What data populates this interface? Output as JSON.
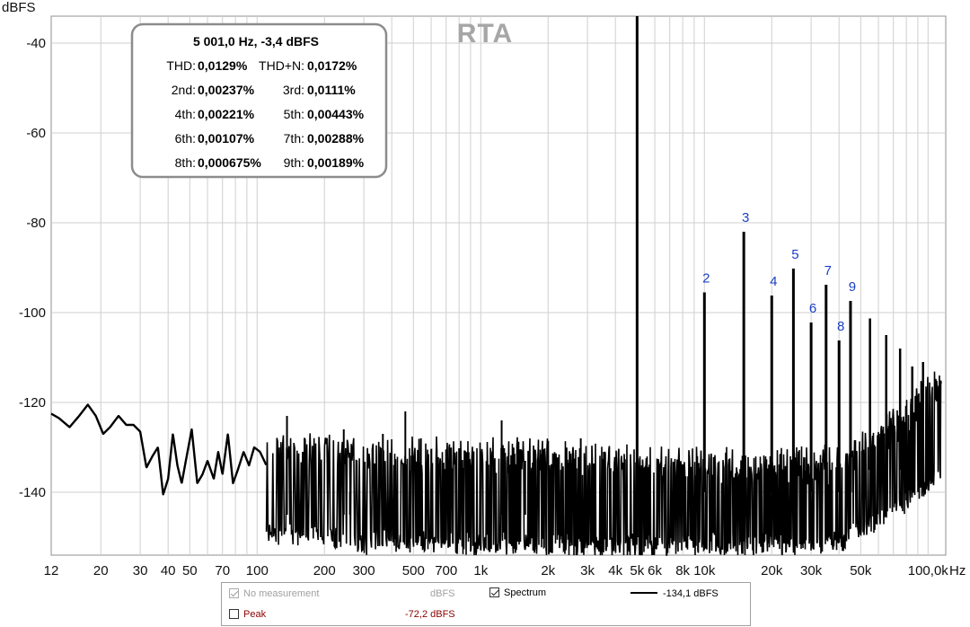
{
  "chart_data": {
    "type": "line",
    "title": "RTA",
    "y_unit_label": "dBFS",
    "x_unit_label": "Hz",
    "x_scale": "log",
    "xlim": [
      12,
      120000
    ],
    "ylim": [
      -154,
      -34
    ],
    "grid": true,
    "x_tick_labels": [
      {
        "v": 12,
        "t": "12"
      },
      {
        "v": 20,
        "t": "20"
      },
      {
        "v": 30,
        "t": "30"
      },
      {
        "v": 40,
        "t": "40"
      },
      {
        "v": 50,
        "t": "50"
      },
      {
        "v": 70,
        "t": "70"
      },
      {
        "v": 100,
        "t": "100"
      },
      {
        "v": 200,
        "t": "200"
      },
      {
        "v": 300,
        "t": "300"
      },
      {
        "v": 500,
        "t": "500"
      },
      {
        "v": 700,
        "t": "700"
      },
      {
        "v": 1000,
        "t": "1k"
      },
      {
        "v": 2000,
        "t": "2k"
      },
      {
        "v": 3000,
        "t": "3k"
      },
      {
        "v": 4000,
        "t": "4k"
      },
      {
        "v": 5000,
        "t": "5k"
      },
      {
        "v": 6000,
        "t": "6k"
      },
      {
        "v": 8000,
        "t": "8k"
      },
      {
        "v": 10000,
        "t": "10k"
      },
      {
        "v": 20000,
        "t": "20k"
      },
      {
        "v": 30000,
        "t": "30k"
      },
      {
        "v": 50000,
        "t": "50k"
      },
      {
        "v": 100000,
        "t": "100,0k"
      }
    ],
    "y_ticks": [
      -40,
      -60,
      -80,
      -100,
      -120,
      -140
    ],
    "fundamental": {
      "freq_hz": 5001,
      "level_dbfs": -3.4
    },
    "harmonics": [
      {
        "n": "2",
        "freq_hz": 10002,
        "level_dbfs": -95.5
      },
      {
        "n": "3",
        "freq_hz": 15003,
        "level_dbfs": -82.0
      },
      {
        "n": "4",
        "freq_hz": 20004,
        "level_dbfs": -96.2
      },
      {
        "n": "5",
        "freq_hz": 25005,
        "level_dbfs": -90.2
      },
      {
        "n": "6",
        "freq_hz": 30006,
        "level_dbfs": -102.2
      },
      {
        "n": "7",
        "freq_hz": 35007,
        "level_dbfs": -93.8
      },
      {
        "n": "8",
        "freq_hz": 40008,
        "level_dbfs": -106.2
      },
      {
        "n": "9",
        "freq_hz": 45009,
        "level_dbfs": -97.4
      }
    ],
    "extra_spurs": [
      {
        "freq_hz": 55000,
        "level_dbfs": -101.3
      },
      {
        "freq_hz": 65000,
        "level_dbfs": -105.0
      },
      {
        "freq_hz": 75000,
        "level_dbfs": -108.0
      },
      {
        "freq_hz": 85000,
        "level_dbfs": -112.0
      },
      {
        "freq_hz": 95000,
        "level_dbfs": -111.0
      }
    ],
    "series": [
      {
        "name": "Spectrum",
        "envelope": [
          {
            "x": 12,
            "y": -122.5
          },
          {
            "x": 13,
            "y": -123.5
          },
          {
            "x": 14.5,
            "y": -125.5
          },
          {
            "x": 16,
            "y": -123
          },
          {
            "x": 17.5,
            "y": -120.5
          },
          {
            "x": 19,
            "y": -123
          },
          {
            "x": 20.5,
            "y": -127
          },
          {
            "x": 22,
            "y": -125.5
          },
          {
            "x": 24,
            "y": -123
          },
          {
            "x": 26,
            "y": -125
          },
          {
            "x": 28,
            "y": -125
          },
          {
            "x": 30,
            "y": -126.5
          },
          {
            "x": 32,
            "y": -134.5
          },
          {
            "x": 34,
            "y": -132
          },
          {
            "x": 36,
            "y": -130
          },
          {
            "x": 38,
            "y": -140.5
          },
          {
            "x": 40,
            "y": -137
          },
          {
            "x": 42,
            "y": -127
          },
          {
            "x": 44,
            "y": -134
          },
          {
            "x": 46,
            "y": -138
          },
          {
            "x": 48,
            "y": -133
          },
          {
            "x": 51,
            "y": -126
          },
          {
            "x": 54,
            "y": -138
          },
          {
            "x": 57,
            "y": -136
          },
          {
            "x": 60,
            "y": -133
          },
          {
            "x": 64,
            "y": -137
          },
          {
            "x": 67,
            "y": -131
          },
          {
            "x": 70,
            "y": -136
          },
          {
            "x": 74,
            "y": -127
          },
          {
            "x": 78,
            "y": -138
          },
          {
            "x": 82,
            "y": -135
          },
          {
            "x": 87,
            "y": -131
          },
          {
            "x": 92,
            "y": -134
          },
          {
            "x": 97,
            "y": -130
          },
          {
            "x": 103,
            "y": -131
          },
          {
            "x": 110,
            "y": -134
          }
        ],
        "noise_floor": [
          {
            "x": 110,
            "top": -128,
            "bottom": -150
          },
          {
            "x": 300,
            "top": -130,
            "bottom": -152
          },
          {
            "x": 2000,
            "top": -130,
            "bottom": -153
          },
          {
            "x": 10000,
            "top": -132,
            "bottom": -153
          },
          {
            "x": 40000,
            "top": -132,
            "bottom": -152
          },
          {
            "x": 60000,
            "top": -126,
            "bottom": -147
          },
          {
            "x": 90000,
            "top": -118,
            "bottom": -141
          },
          {
            "x": 115000,
            "top": -113,
            "bottom": -136
          }
        ],
        "isolated_peaks": [
          {
            "x": 136,
            "y": -123
          },
          {
            "x": 160,
            "y": -131
          },
          {
            "x": 182,
            "y": -134
          },
          {
            "x": 244,
            "y": -126
          },
          {
            "x": 260,
            "y": -140
          },
          {
            "x": 365,
            "y": -127
          },
          {
            "x": 460,
            "y": -122
          },
          {
            "x": 540,
            "y": -128
          },
          {
            "x": 1240,
            "y": -124
          },
          {
            "x": 1580,
            "y": -133
          },
          {
            "x": 2800,
            "y": -128
          },
          {
            "x": 3550,
            "y": -131
          }
        ]
      }
    ]
  },
  "info_box": {
    "headline": "5 001,0 Hz, -3,4 dBFS",
    "rows": [
      {
        "l1": "THD:",
        "v1": "0,0129%",
        "l2": "THD+N:",
        "v2": "0,0172%"
      },
      {
        "l1": "2nd:",
        "v1": "0,00237%",
        "l2": "3rd:",
        "v2": "0,0111%"
      },
      {
        "l1": "4th:",
        "v1": "0,00221%",
        "l2": "5th:",
        "v2": "0,00443%"
      },
      {
        "l1": "6th:",
        "v1": "0,00107%",
        "l2": "7th:",
        "v2": "0,00288%"
      },
      {
        "l1": "8th:",
        "v1": "0,000675%",
        "l2": "9th:",
        "v2": "0,00189%"
      }
    ]
  },
  "legend": {
    "no_measurement_label": "No measurement",
    "no_measurement_unit": "dBFS",
    "spectrum_label": "Spectrum",
    "spectrum_value": "-134,1 dBFS",
    "peak_label": "Peak",
    "peak_value": "-72,2 dBFS"
  }
}
